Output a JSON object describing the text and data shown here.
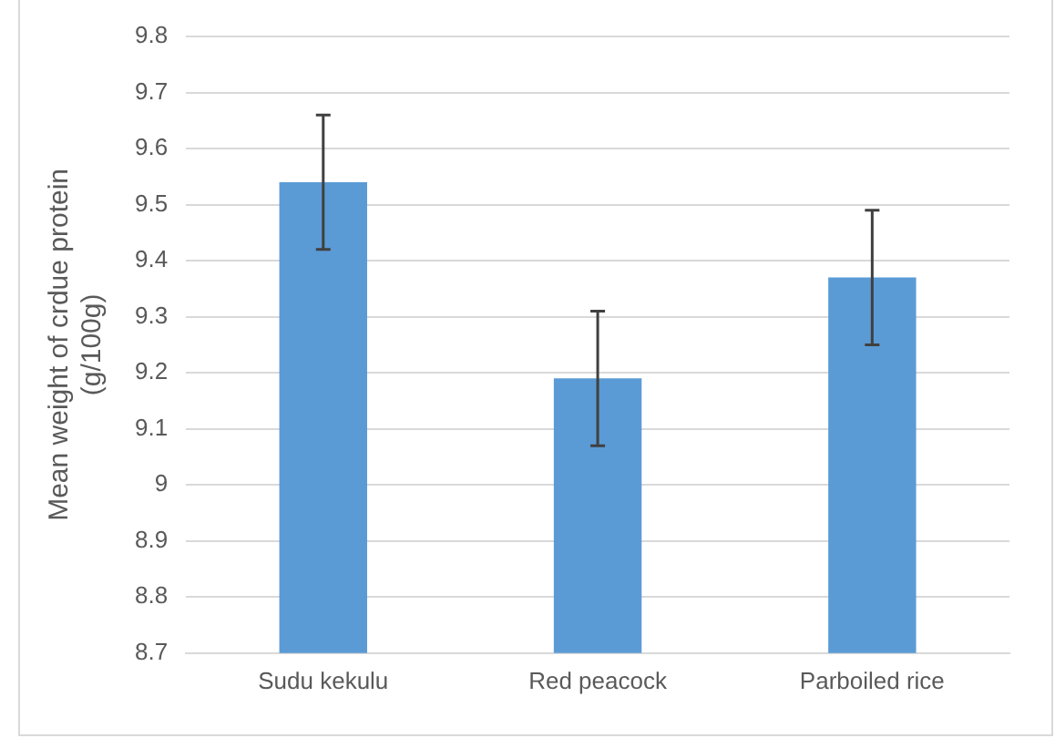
{
  "chart_data": {
    "type": "bar",
    "ylabel": "Mean weight of crdue protein (g/100g)",
    "categories": [
      "Sudu kekulu",
      "Red peacock",
      "Parboiled rice"
    ],
    "values": [
      9.54,
      9.19,
      9.37
    ],
    "errors": [
      0.12,
      0.12,
      0.12
    ],
    "color": "#5b9bd5",
    "ylim": [
      8.7,
      9.8
    ],
    "yticks": [
      8.7,
      8.8,
      8.9,
      9,
      9.1,
      9.2,
      9.3,
      9.4,
      9.5,
      9.6,
      9.7,
      9.8
    ],
    "grid": "y"
  }
}
